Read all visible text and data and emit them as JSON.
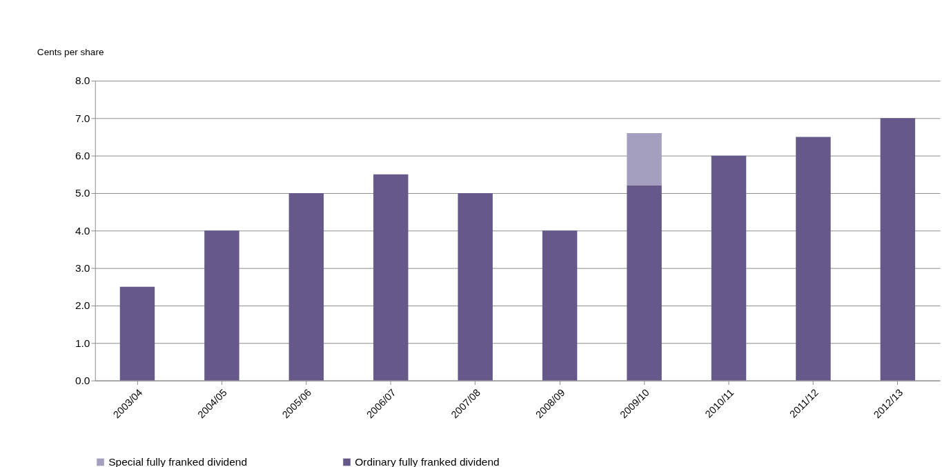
{
  "chart_data": {
    "type": "bar",
    "stacked": true,
    "ylabel": "Cents per share",
    "categories": [
      "2003/04",
      "2004/05",
      "2005/06",
      "2006/07",
      "2007/08",
      "2008/09",
      "2009/10",
      "2010/11",
      "2011/12",
      "2012/13"
    ],
    "series": [
      {
        "name": "Ordinary fully franked dividend",
        "color": "#65598a",
        "values": [
          2.5,
          4.0,
          5.0,
          5.5,
          5.0,
          4.0,
          5.2,
          6.0,
          6.5,
          7.0
        ]
      },
      {
        "name": "Special fully franked dividend",
        "color": "#a59fbf",
        "values": [
          null,
          null,
          null,
          null,
          null,
          null,
          1.4,
          null,
          null,
          null
        ]
      }
    ],
    "ylim": [
      0,
      8
    ],
    "yticks": [
      {
        "value": 0,
        "label": "0.0"
      },
      {
        "value": 1,
        "label": "1.0"
      },
      {
        "value": 2,
        "label": "2.0"
      },
      {
        "value": 3,
        "label": "3.0"
      },
      {
        "value": 4,
        "label": "4.0"
      },
      {
        "value": 5,
        "label": "5.0"
      },
      {
        "value": 6,
        "label": "6.0"
      },
      {
        "value": 7,
        "label": "7.0"
      },
      {
        "value": 8,
        "label": "8.0"
      }
    ],
    "grid": "y",
    "legend": "bottom"
  }
}
